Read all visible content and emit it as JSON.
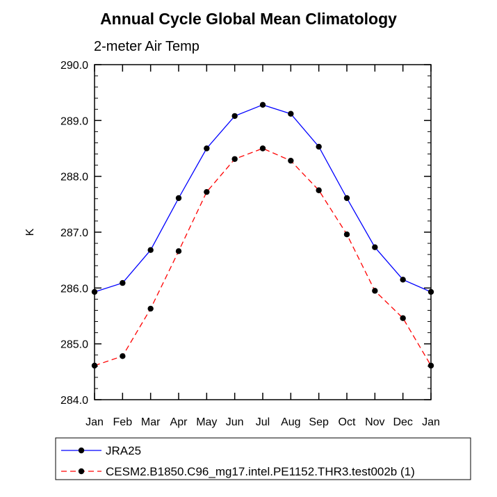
{
  "chart_data": {
    "type": "line",
    "title": "Annual Cycle Global Mean Climatology",
    "subtitle": "2-meter Air Temp",
    "ylabel": "K",
    "xlabel": "",
    "ylim": [
      284.0,
      290.0
    ],
    "yticks": [
      "284.0",
      "285.0",
      "286.0",
      "287.0",
      "288.0",
      "289.0",
      "290.0"
    ],
    "categories": [
      "Jan",
      "Feb",
      "Mar",
      "Apr",
      "May",
      "Jun",
      "Jul",
      "Aug",
      "Sep",
      "Oct",
      "Nov",
      "Dec",
      "Jan"
    ],
    "grid": false,
    "legend_position": "bottom",
    "series": [
      {
        "name": "JRA25",
        "color": "#0000ff",
        "dash": "solid",
        "values": [
          285.93,
          286.09,
          286.68,
          287.61,
          288.5,
          289.08,
          289.28,
          289.12,
          288.53,
          287.61,
          286.73,
          286.15,
          285.93
        ]
      },
      {
        "name": "CESM2.B1850.C96_mg17.intel.PE1152.THR3.test002b (1)",
        "color": "#ff0000",
        "dash": "dashed",
        "values": [
          284.61,
          284.78,
          285.63,
          286.66,
          287.72,
          288.31,
          288.5,
          288.28,
          287.75,
          286.96,
          285.95,
          285.46,
          284.61
        ]
      }
    ]
  }
}
